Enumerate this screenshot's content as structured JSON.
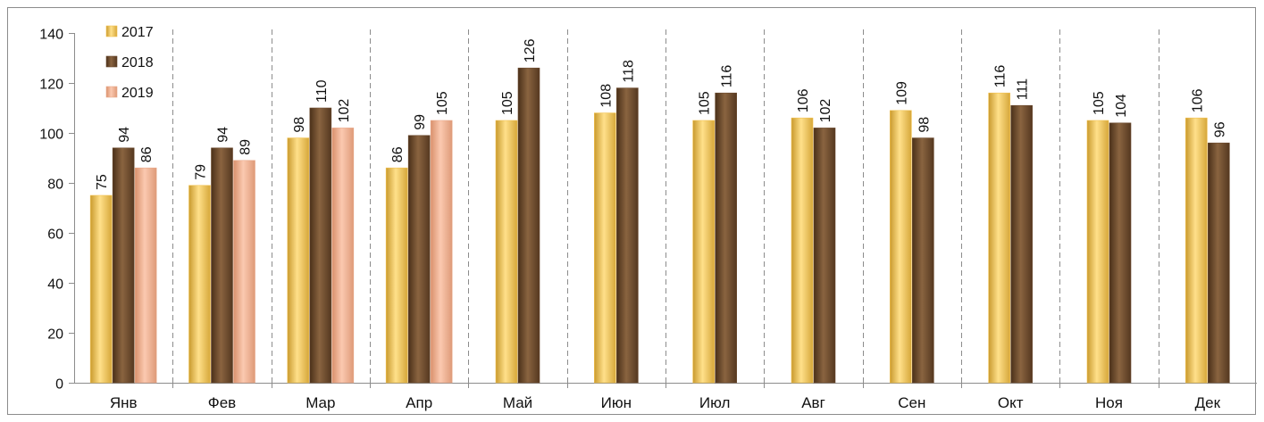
{
  "chart_data": {
    "type": "bar",
    "title": "",
    "xlabel": "",
    "ylabel": "",
    "ylim": [
      0,
      140
    ],
    "yticks": [
      0,
      20,
      40,
      60,
      80,
      100,
      120,
      140
    ],
    "grid": "vertical dashed separators between categories",
    "legend_position": "top-left",
    "data_labels": true,
    "categories": [
      "Янв",
      "Фев",
      "Мар",
      "Апр",
      "Май",
      "Июн",
      "Июл",
      "Авг",
      "Сен",
      "Окт",
      "Ноя",
      "Дек"
    ],
    "series": [
      {
        "name": "2017",
        "color": "#f2c14e",
        "values": [
          75,
          79,
          98,
          86,
          105,
          108,
          105,
          106,
          109,
          116,
          105,
          106
        ]
      },
      {
        "name": "2018",
        "color": "#6b4a2e",
        "values": [
          94,
          94,
          110,
          99,
          126,
          118,
          116,
          102,
          98,
          111,
          104,
          96
        ]
      },
      {
        "name": "2019",
        "color": "#e9a98a",
        "values": [
          86,
          89,
          102,
          105,
          null,
          null,
          null,
          null,
          null,
          null,
          null,
          null
        ]
      }
    ]
  }
}
